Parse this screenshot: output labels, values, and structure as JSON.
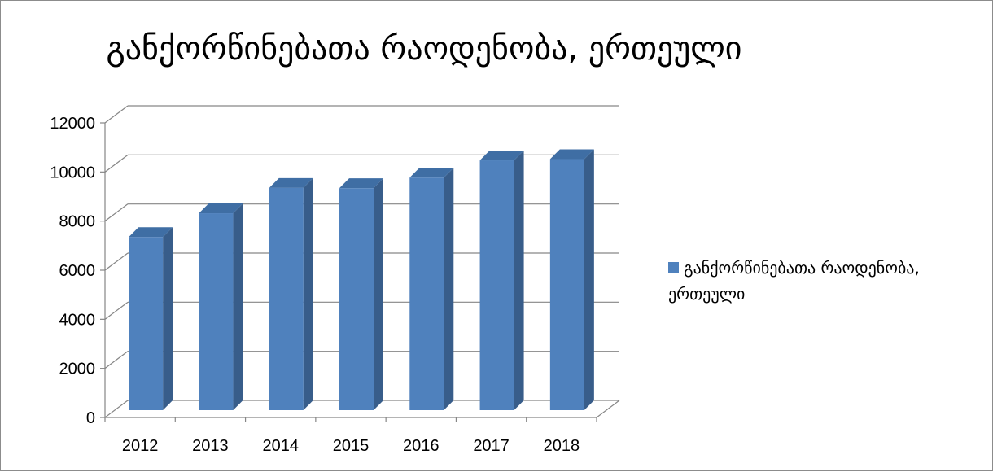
{
  "chart_data": {
    "type": "bar",
    "title": "განქორწინებათა რაოდენობა, ერთეული",
    "categories": [
      "2012",
      "2013",
      "2014",
      "2015",
      "2016",
      "2017",
      "2018"
    ],
    "series": [
      {
        "name": "განქორწინებათა რაოდენობა, ერთეული",
        "values": [
          7052,
          8021,
          9055,
          9044,
          9472,
          10176,
          10226
        ],
        "color": "#4f81bd"
      }
    ],
    "ylim": [
      0,
      12000
    ],
    "yticks": [
      0,
      2000,
      4000,
      6000,
      8000,
      10000,
      12000
    ],
    "grid": true,
    "legend": "right",
    "three_d": true
  }
}
